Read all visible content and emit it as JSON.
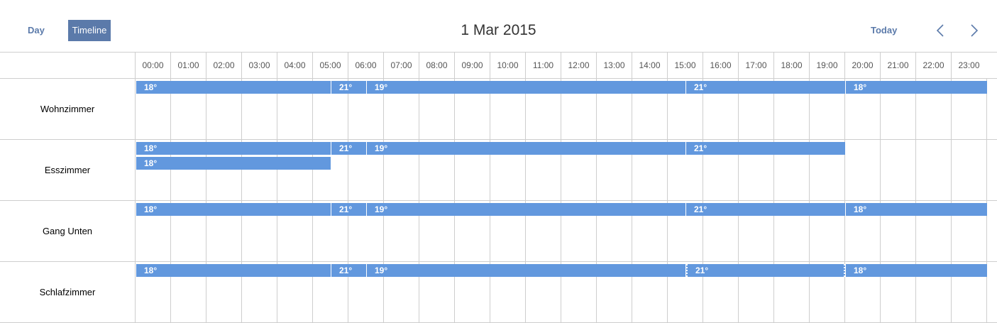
{
  "nav": {
    "day_label": "Day",
    "timeline_label": "Timeline",
    "title": "1 Mar 2015",
    "today_label": "Today",
    "prev_icon": "chevron-left-icon",
    "next_icon": "chevron-right-icon"
  },
  "hours": [
    "00:00",
    "01:00",
    "02:00",
    "03:00",
    "04:00",
    "05:00",
    "06:00",
    "07:00",
    "08:00",
    "09:00",
    "10:00",
    "11:00",
    "12:00",
    "13:00",
    "14:00",
    "15:00",
    "16:00",
    "17:00",
    "18:00",
    "19:00",
    "20:00",
    "21:00",
    "22:00",
    "23:00"
  ],
  "colors": {
    "event": "#6298de",
    "accent": "#5b7aaa",
    "grid": "#cecece"
  },
  "rooms": [
    {
      "name": "Wohnzimmer",
      "events": [
        {
          "label": "18°",
          "start": "00:00",
          "end": "05:30",
          "lane": 0
        },
        {
          "label": "21°",
          "start": "05:30",
          "end": "06:30",
          "lane": 0
        },
        {
          "label": "19°",
          "start": "06:30",
          "end": "15:30",
          "lane": 0
        },
        {
          "label": "21°",
          "start": "15:30",
          "end": "20:00",
          "lane": 0
        },
        {
          "label": "18°",
          "start": "20:00",
          "end": "24:00",
          "lane": 0
        }
      ]
    },
    {
      "name": "Esszimmer",
      "events": [
        {
          "label": "18°",
          "start": "00:00",
          "end": "05:30",
          "lane": 0
        },
        {
          "label": "21°",
          "start": "05:30",
          "end": "06:30",
          "lane": 0
        },
        {
          "label": "19°",
          "start": "06:30",
          "end": "15:30",
          "lane": 0
        },
        {
          "label": "21°",
          "start": "15:30",
          "end": "20:00",
          "lane": 0
        },
        {
          "label": "18°",
          "start": "00:00",
          "end": "05:30",
          "lane": 1
        }
      ]
    },
    {
      "name": "Gang Unten",
      "events": [
        {
          "label": "18°",
          "start": "00:00",
          "end": "05:30",
          "lane": 0
        },
        {
          "label": "21°",
          "start": "05:30",
          "end": "06:30",
          "lane": 0
        },
        {
          "label": "19°",
          "start": "06:30",
          "end": "15:30",
          "lane": 0
        },
        {
          "label": "21°",
          "start": "15:30",
          "end": "20:00",
          "lane": 0
        },
        {
          "label": "18°",
          "start": "20:00",
          "end": "24:00",
          "lane": 0
        }
      ]
    },
    {
      "name": "Schlafzimmer",
      "events": [
        {
          "label": "18°",
          "start": "00:00",
          "end": "05:30",
          "lane": 0
        },
        {
          "label": "21°",
          "start": "05:30",
          "end": "06:30",
          "lane": 0
        },
        {
          "label": "19°",
          "start": "06:30",
          "end": "15:30",
          "lane": 0
        },
        {
          "label": "21°",
          "start": "15:30",
          "end": "20:00",
          "lane": 0,
          "selected": true
        },
        {
          "label": "18°",
          "start": "20:00",
          "end": "24:00",
          "lane": 0
        }
      ]
    }
  ]
}
